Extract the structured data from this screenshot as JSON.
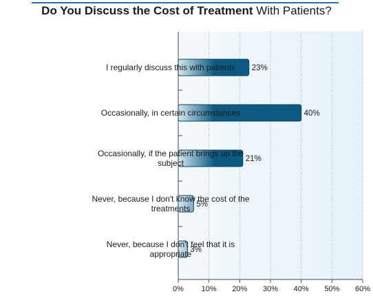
{
  "title": {
    "bold": "Do You Discuss the Cost of Treatment",
    "regular": " With Patients?"
  },
  "colors": {
    "bar_dark": "#0c5a82",
    "bar_light": "#d6e8f1",
    "plot_bg_light": "#f4f9fc",
    "plot_bg_right": "#e6f2f9",
    "title_rule": "#2f6f9f",
    "grid": "#8aa8b6"
  },
  "chart_data": {
    "type": "bar",
    "orientation": "horizontal",
    "categories": [
      [
        "I regularly discuss this with patients"
      ],
      [
        "Occasionally, in certain circumstances"
      ],
      [
        "Occasionally, if the patient brings up the",
        "subject"
      ],
      [
        "Never, because I don't know the cost of the",
        "treatments"
      ],
      [
        "Never, because I don't feel that it is",
        "appropriate"
      ]
    ],
    "values": [
      23,
      40,
      21,
      5,
      3
    ],
    "value_labels": [
      "23%",
      "40%",
      "21%",
      "5%",
      "3%"
    ],
    "xlim": [
      0,
      60
    ],
    "xticks": [
      0,
      10,
      20,
      30,
      40,
      50,
      60
    ],
    "xtick_labels": [
      "0%",
      "10%",
      "20%",
      "30%",
      "40%",
      "50%",
      "60%"
    ],
    "grid": "vertical dotted",
    "legend": "none"
  }
}
